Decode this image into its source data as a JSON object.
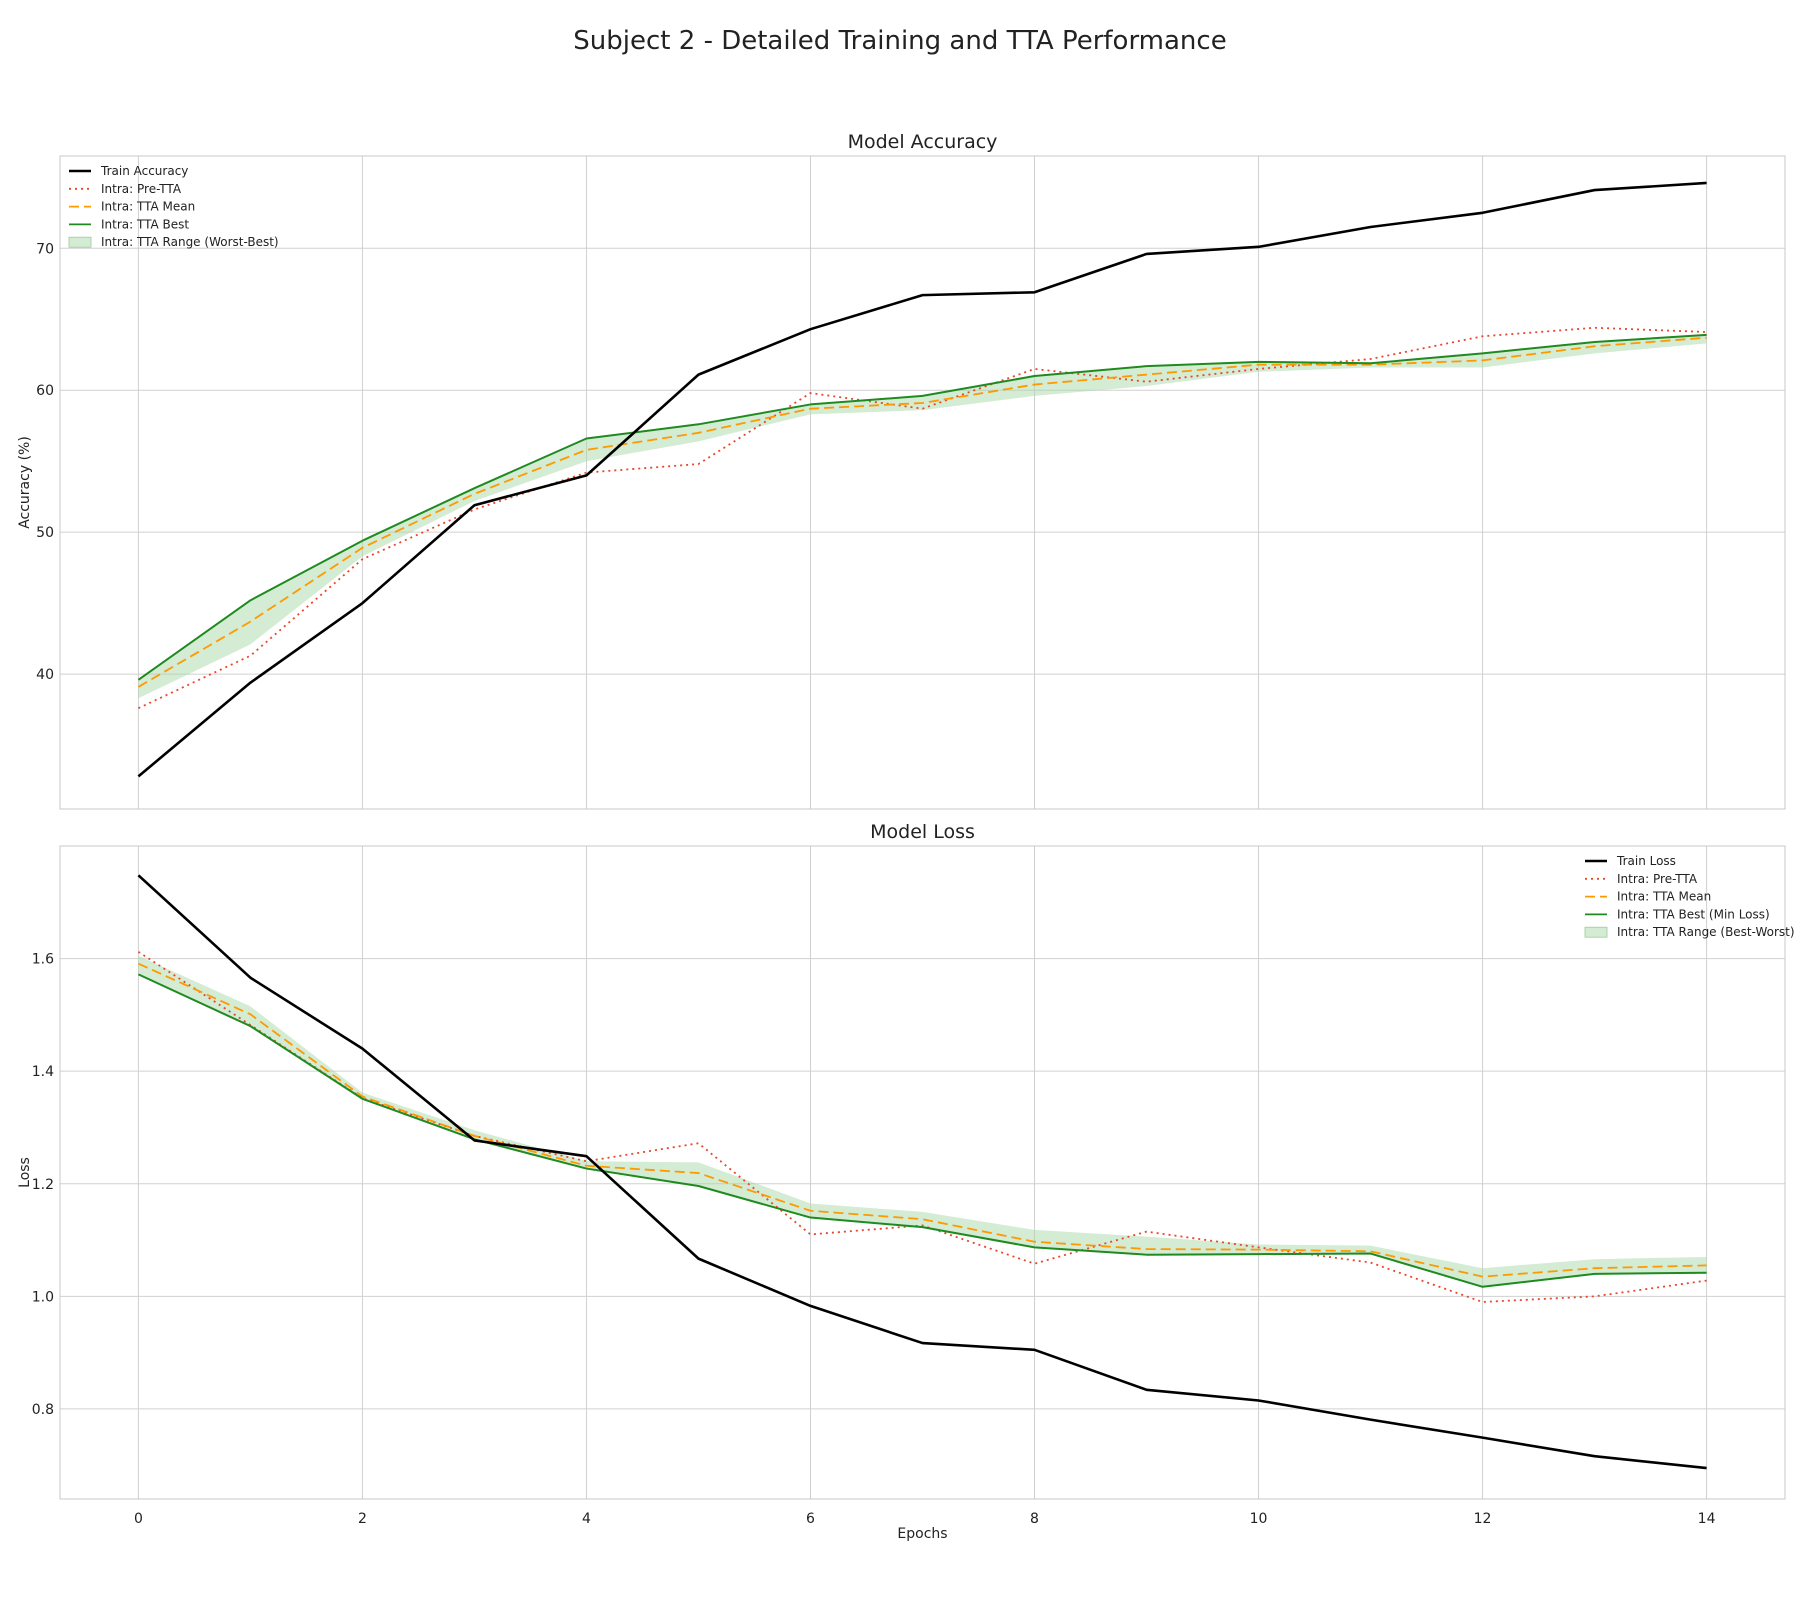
{
  "title": "Subject 2 - Detailed Training and TTA Performance",
  "colors": {
    "train": "#000000",
    "pre_tta": "#e8462b",
    "tta_mean": "#ff9900",
    "tta_best": "#1f8a1f",
    "tta_range": "#a9d8a9",
    "grid": "#d0d0d0",
    "frame": "#c8c8c8"
  },
  "chart_data": [
    {
      "type": "line",
      "title": "Model Accuracy",
      "xlabel": "",
      "ylabel": "Accuracy (%)",
      "x": [
        0,
        1,
        2,
        3,
        4,
        5,
        6,
        7,
        8,
        9,
        10,
        11,
        12,
        13,
        14
      ],
      "xlim": [
        -0.7,
        14.7
      ],
      "ylim": [
        30.5,
        76.5
      ],
      "yticks": [
        40,
        50,
        60,
        70
      ],
      "grid": true,
      "legend_position": "top-left",
      "series": [
        {
          "name": "Train Accuracy",
          "style": "solid",
          "color": "#000000",
          "values": [
            32.8,
            39.4,
            45.0,
            51.9,
            54.0,
            61.1,
            64.3,
            66.7,
            66.9,
            69.6,
            70.1,
            71.5,
            72.5,
            74.1,
            74.6
          ]
        },
        {
          "name": "Intra: Pre-TTA",
          "style": "dotted",
          "color": "#e8462b",
          "values": [
            37.6,
            41.3,
            48.1,
            51.6,
            54.2,
            54.8,
            59.8,
            58.7,
            61.5,
            60.6,
            61.5,
            62.2,
            63.8,
            64.4,
            64.1
          ]
        },
        {
          "name": "Intra: TTA Mean",
          "style": "dashed",
          "color": "#ff9900",
          "values": [
            39.1,
            43.7,
            48.9,
            52.7,
            55.8,
            57.0,
            58.7,
            59.1,
            60.4,
            61.1,
            61.8,
            61.8,
            62.1,
            63.1,
            63.7
          ]
        },
        {
          "name": "Intra: TTA Best",
          "style": "solid",
          "color": "#1f8a1f",
          "values": [
            39.6,
            45.2,
            49.4,
            53.1,
            56.6,
            57.6,
            59.0,
            59.6,
            61.0,
            61.7,
            62.0,
            61.9,
            62.6,
            63.4,
            63.9
          ]
        }
      ],
      "band": {
        "name": "Intra: TTA Range (Worst-Best)",
        "lower": [
          38.3,
          42.1,
          48.3,
          52.2,
          55.0,
          56.4,
          58.3,
          58.6,
          59.6,
          60.3,
          61.3,
          61.6,
          61.6,
          62.6,
          63.3
        ],
        "upper": [
          39.6,
          45.2,
          49.4,
          53.1,
          56.6,
          57.6,
          59.0,
          59.6,
          61.0,
          61.7,
          62.0,
          61.9,
          62.6,
          63.4,
          63.9
        ]
      }
    },
    {
      "type": "line",
      "title": "Model Loss",
      "xlabel": "Epochs",
      "ylabel": "Loss",
      "x": [
        0,
        1,
        2,
        3,
        4,
        5,
        6,
        7,
        8,
        9,
        10,
        11,
        12,
        13,
        14
      ],
      "xlim": [
        -0.7,
        14.7
      ],
      "xticks": [
        0,
        2,
        4,
        6,
        8,
        10,
        12,
        14
      ],
      "ylim": [
        0.64,
        1.8
      ],
      "yticks": [
        0.8,
        1.0,
        1.2,
        1.4,
        1.6
      ],
      "grid": true,
      "legend_position": "top-right",
      "series": [
        {
          "name": "Train Loss",
          "style": "solid",
          "color": "#000000",
          "values": [
            1.748,
            1.566,
            1.44,
            1.277,
            1.249,
            1.067,
            0.983,
            0.917,
            0.905,
            0.834,
            0.815,
            0.781,
            0.749,
            0.716,
            0.695
          ]
        },
        {
          "name": "Intra: Pre-TTA",
          "style": "dotted",
          "color": "#e8462b",
          "values": [
            1.612,
            1.482,
            1.352,
            1.285,
            1.24,
            1.272,
            1.11,
            1.126,
            1.058,
            1.115,
            1.087,
            1.06,
            0.99,
            1.0,
            1.028
          ]
        },
        {
          "name": "Intra: TTA Mean",
          "style": "dashed",
          "color": "#ff9900",
          "values": [
            1.591,
            1.501,
            1.355,
            1.285,
            1.232,
            1.219,
            1.152,
            1.137,
            1.097,
            1.084,
            1.083,
            1.08,
            1.035,
            1.05,
            1.055
          ]
        },
        {
          "name": "Intra: TTA Best (Min Loss)",
          "style": "solid",
          "color": "#1f8a1f",
          "values": [
            1.572,
            1.48,
            1.351,
            1.279,
            1.227,
            1.196,
            1.14,
            1.123,
            1.087,
            1.074,
            1.075,
            1.076,
            1.017,
            1.04,
            1.042
          ]
        }
      ],
      "band": {
        "name": "Intra: TTA Range (Best-Worst)",
        "lower": [
          1.572,
          1.48,
          1.351,
          1.279,
          1.227,
          1.196,
          1.14,
          1.123,
          1.087,
          1.074,
          1.075,
          1.076,
          1.017,
          1.04,
          1.042
        ],
        "upper": [
          1.605,
          1.515,
          1.362,
          1.295,
          1.24,
          1.238,
          1.165,
          1.15,
          1.118,
          1.106,
          1.092,
          1.09,
          1.05,
          1.066,
          1.07
        ]
      }
    }
  ]
}
